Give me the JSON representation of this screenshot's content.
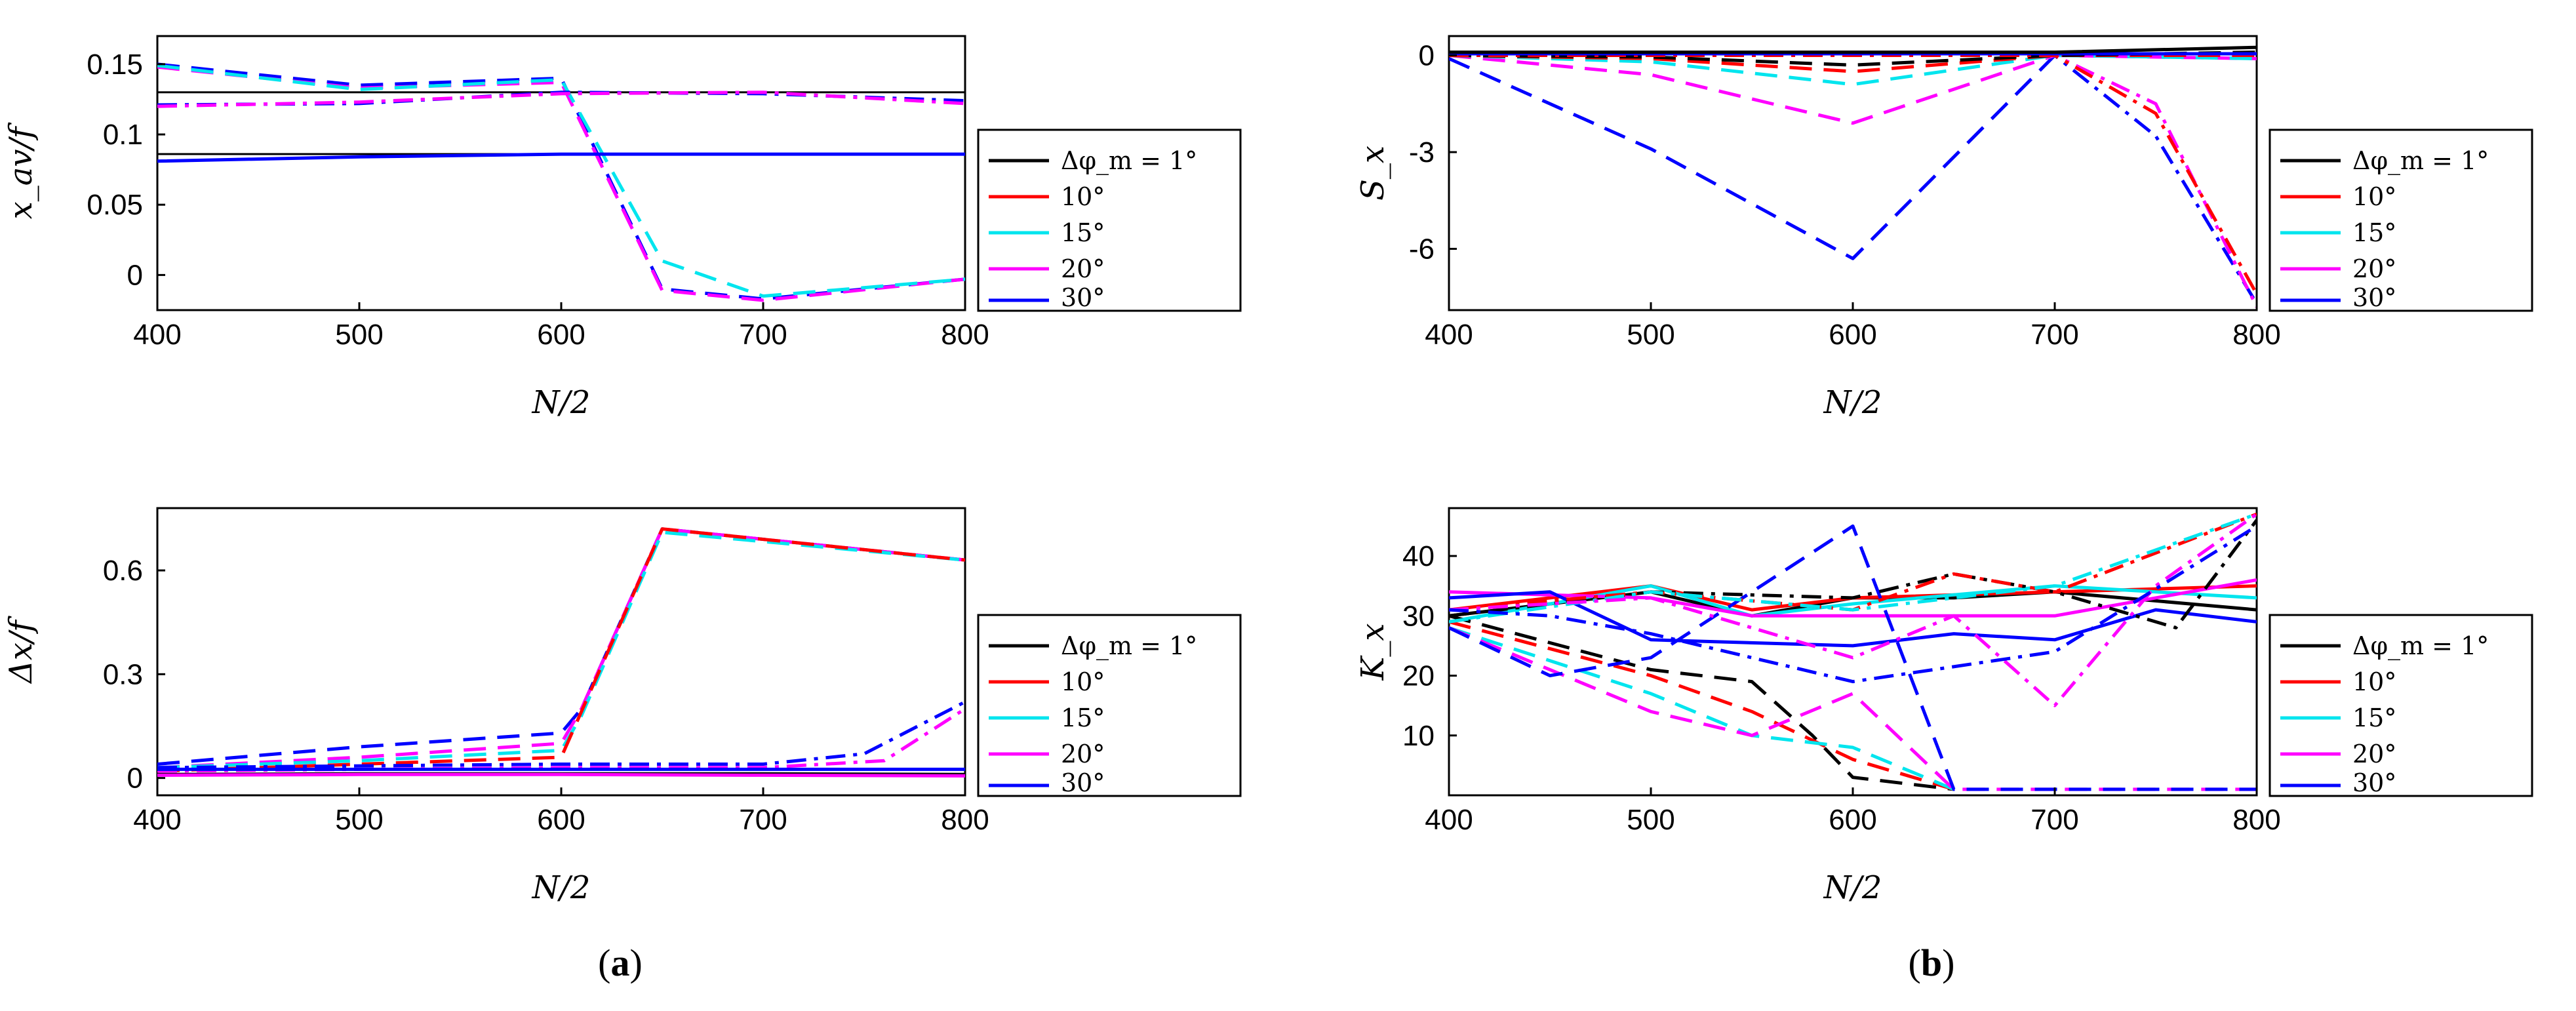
{
  "figure": {
    "panel_labels": [
      {
        "open": "(",
        "letter": "a",
        "close": ")"
      },
      {
        "open": "(",
        "letter": "b",
        "close": ")"
      }
    ]
  },
  "legend": {
    "entries": [
      "Δφ_m = 1°",
      "10°",
      "15°",
      "20°",
      "30°"
    ],
    "colors": [
      "#000000",
      "#ff0000",
      "#00e5ee",
      "#ff00ff",
      "#0000ff"
    ]
  },
  "chart_data": [
    {
      "id": "xav",
      "type": "line",
      "xlabel": "N/2",
      "ylabel": "x_av/f",
      "xlim": [
        400,
        800
      ],
      "ylim": [
        -0.025,
        0.17
      ],
      "xticks": [
        400,
        500,
        600,
        700,
        800
      ],
      "yticks": [
        0,
        0.05,
        0.1,
        0.15
      ],
      "ytick_labels": [
        "0",
        "0.05",
        "0.1",
        "0.15"
      ],
      "hlines": [
        0.17,
        0.13,
        0.086
      ],
      "series": [
        {
          "name": "30° dashed",
          "color": "#0000ff",
          "dash": "dash",
          "x": [
            400,
            500,
            600,
            650,
            700,
            800
          ],
          "y": [
            0.15,
            0.135,
            0.14,
            -0.01,
            -0.017,
            -0.003
          ]
        },
        {
          "name": "20° dashed",
          "color": "#ff00ff",
          "dash": "dash",
          "x": [
            400,
            500,
            600,
            650,
            700,
            800
          ],
          "y": [
            0.148,
            0.133,
            0.137,
            -0.011,
            -0.018,
            -0.003
          ]
        },
        {
          "name": "15° dashed",
          "color": "#00e5ee",
          "dash": "dash",
          "x": [
            400,
            500,
            600,
            650,
            700,
            800
          ],
          "y": [
            0.149,
            0.132,
            0.139,
            0.01,
            -0.015,
            -0.003
          ]
        },
        {
          "name": "dash-dot group",
          "color": "#0000ff",
          "dash": "dashdot",
          "x": [
            400,
            500,
            600,
            700,
            800
          ],
          "y": [
            0.121,
            0.122,
            0.13,
            0.129,
            0.124
          ]
        },
        {
          "name": "dash-dot group (20°)",
          "color": "#ff00ff",
          "dash": "dashdot",
          "x": [
            400,
            500,
            600,
            700,
            800
          ],
          "y": [
            0.12,
            0.123,
            0.129,
            0.13,
            0.122
          ]
        },
        {
          "name": "solid group",
          "color": "#0000ff",
          "dash": "solid",
          "x": [
            400,
            500,
            600,
            700,
            800
          ],
          "y": [
            0.081,
            0.084,
            0.086,
            0.086,
            0.086
          ]
        }
      ]
    },
    {
      "id": "dx",
      "type": "line",
      "xlabel": "N/2",
      "ylabel": "Δx/f",
      "xlim": [
        400,
        800
      ],
      "ylim": [
        -0.05,
        0.78
      ],
      "xticks": [
        400,
        500,
        600,
        700,
        800
      ],
      "yticks": [
        0,
        0.3,
        0.6
      ],
      "ytick_labels": [
        "0",
        "0.3",
        "0.6"
      ],
      "series": [
        {
          "name": "30° dashed",
          "color": "#0000ff",
          "dash": "dash",
          "x": [
            400,
            500,
            600,
            610,
            650,
            800
          ],
          "y": [
            0.04,
            0.09,
            0.13,
            0.2,
            0.72,
            0.63
          ]
        },
        {
          "name": "20° dashed",
          "color": "#ff00ff",
          "dash": "dash",
          "x": [
            400,
            500,
            600,
            610,
            650,
            800
          ],
          "y": [
            0.03,
            0.06,
            0.1,
            0.2,
            0.72,
            0.63
          ]
        },
        {
          "name": "15° dashed",
          "color": "#00e5ee",
          "dash": "dash",
          "x": [
            400,
            500,
            600,
            610,
            650,
            800
          ],
          "y": [
            0.03,
            0.05,
            0.08,
            0.18,
            0.71,
            0.63
          ]
        },
        {
          "name": "10° dashed",
          "color": "#ff0000",
          "dash": "dash",
          "x": [
            400,
            500,
            600,
            650,
            800
          ],
          "y": [
            0.02,
            0.04,
            0.06,
            0.72,
            0.63
          ]
        },
        {
          "name": "30° dash-dot",
          "color": "#0000ff",
          "dash": "dashdot",
          "x": [
            400,
            600,
            700,
            750,
            800
          ],
          "y": [
            0.03,
            0.04,
            0.04,
            0.07,
            0.22
          ]
        },
        {
          "name": "20° dash-dot",
          "color": "#ff00ff",
          "dash": "dashdot",
          "x": [
            400,
            600,
            700,
            760,
            800
          ],
          "y": [
            0.02,
            0.03,
            0.03,
            0.05,
            0.2
          ]
        },
        {
          "name": "solid group",
          "color": "#0000ff",
          "dash": "solid",
          "x": [
            400,
            500,
            600,
            700,
            800
          ],
          "y": [
            0.025,
            0.025,
            0.025,
            0.025,
            0.025
          ]
        },
        {
          "name": "solid 1°",
          "color": "#000000",
          "dash": "solid",
          "x": [
            400,
            500,
            600,
            700,
            800
          ],
          "y": [
            0.01,
            0.012,
            0.012,
            0.012,
            0.01
          ]
        },
        {
          "name": "solid 20°",
          "color": "#ff00ff",
          "dash": "solid",
          "x": [
            400,
            500,
            600,
            700,
            800
          ],
          "y": [
            0.008,
            0.01,
            0.01,
            0.008,
            0.006
          ]
        }
      ]
    },
    {
      "id": "sx",
      "type": "line",
      "xlabel": "N/2",
      "ylabel": "S_x",
      "xlim": [
        400,
        800
      ],
      "ylim": [
        -7.9,
        0.6
      ],
      "xticks": [
        400,
        500,
        600,
        700,
        800
      ],
      "yticks": [
        0,
        -3,
        -6
      ],
      "ytick_labels": [
        "0",
        "-3",
        "-6"
      ],
      "series": [
        {
          "name": "30° dashed",
          "color": "#0000ff",
          "dash": "dash",
          "x": [
            400,
            500,
            600,
            700
          ],
          "y": [
            -0.1,
            -2.9,
            -6.3,
            0.0
          ]
        },
        {
          "name": "20° dashed",
          "color": "#ff00ff",
          "dash": "dash",
          "x": [
            400,
            500,
            600,
            700,
            800
          ],
          "y": [
            0.0,
            -0.6,
            -2.1,
            0.0,
            -0.1
          ]
        },
        {
          "name": "15° dashed",
          "color": "#00e5ee",
          "dash": "dash",
          "x": [
            400,
            500,
            600,
            700,
            800
          ],
          "y": [
            0.0,
            -0.2,
            -0.9,
            0.0,
            -0.1
          ]
        },
        {
          "name": "10° dashed",
          "color": "#ff0000",
          "dash": "dash",
          "x": [
            400,
            500,
            600,
            700,
            800
          ],
          "y": [
            0.0,
            -0.1,
            -0.5,
            0.0,
            0.0
          ]
        },
        {
          "name": "1° dashed",
          "color": "#000000",
          "dash": "dash",
          "x": [
            400,
            500,
            600,
            700,
            800
          ],
          "y": [
            0.0,
            -0.05,
            -0.3,
            0.0,
            0.1
          ]
        },
        {
          "name": "30° dash-dot",
          "color": "#0000ff",
          "dash": "dashdot",
          "x": [
            400,
            700,
            750,
            800
          ],
          "y": [
            0.0,
            0.0,
            -2.5,
            -7.7
          ]
        },
        {
          "name": "20° dash-dot",
          "color": "#ff00ff",
          "dash": "dashdot",
          "x": [
            400,
            700,
            750,
            800
          ],
          "y": [
            0.0,
            0.0,
            -1.5,
            -7.8
          ]
        },
        {
          "name": "10° dash-dot",
          "color": "#ff0000",
          "dash": "dashdot",
          "x": [
            400,
            700,
            750,
            800
          ],
          "y": [
            0.0,
            0.0,
            -1.8,
            -7.4
          ]
        },
        {
          "name": "solid group",
          "color": "#0000ff",
          "dash": "solid",
          "x": [
            400,
            800
          ],
          "y": [
            0.05,
            0.05
          ]
        },
        {
          "name": "solid 1°",
          "color": "#000000",
          "dash": "solid",
          "x": [
            400,
            700,
            800
          ],
          "y": [
            0.1,
            0.1,
            0.25
          ]
        }
      ]
    },
    {
      "id": "kx",
      "type": "line",
      "xlabel": "N/2",
      "ylabel": "K_x",
      "xlim": [
        400,
        800
      ],
      "ylim": [
        0,
        48
      ],
      "xticks": [
        400,
        500,
        600,
        700,
        800
      ],
      "yticks": [
        10,
        20,
        30,
        40
      ],
      "ytick_labels": [
        "10",
        "20",
        "30",
        "40"
      ],
      "series": [
        {
          "name": "1° solid",
          "color": "#000000",
          "dash": "solid",
          "x": [
            400,
            500,
            550,
            600,
            650,
            700,
            800
          ],
          "y": [
            30,
            34,
            30,
            33,
            33,
            34,
            31
          ]
        },
        {
          "name": "10° solid",
          "color": "#ff0000",
          "dash": "solid",
          "x": [
            400,
            500,
            550,
            600,
            700,
            800
          ],
          "y": [
            31,
            35,
            31,
            33,
            34,
            35
          ]
        },
        {
          "name": "15° solid",
          "color": "#00e5ee",
          "dash": "solid",
          "x": [
            400,
            500,
            550,
            600,
            700,
            800
          ],
          "y": [
            29,
            35,
            30,
            32,
            35,
            33
          ]
        },
        {
          "name": "20° solid",
          "color": "#ff00ff",
          "dash": "solid",
          "x": [
            400,
            500,
            550,
            600,
            700,
            800
          ],
          "y": [
            34,
            33,
            30,
            30,
            30,
            36
          ]
        },
        {
          "name": "30° solid",
          "color": "#0000ff",
          "dash": "solid",
          "x": [
            400,
            450,
            500,
            600,
            650,
            700,
            750,
            800
          ],
          "y": [
            33,
            34,
            26,
            25,
            27,
            26,
            31,
            29
          ]
        },
        {
          "name": "1° dashed",
          "color": "#000000",
          "dash": "dash",
          "x": [
            400,
            500,
            550,
            580,
            600,
            650
          ],
          "y": [
            30,
            21,
            19,
            10,
            3,
            1
          ]
        },
        {
          "name": "10° dashed",
          "color": "#ff0000",
          "dash": "dash",
          "x": [
            400,
            500,
            550,
            600,
            650
          ],
          "y": [
            29,
            20,
            14,
            6,
            1
          ]
        },
        {
          "name": "15° dashed",
          "color": "#00e5ee",
          "dash": "dash",
          "x": [
            400,
            500,
            550,
            600,
            650
          ],
          "y": [
            28,
            17,
            10,
            8,
            1
          ]
        },
        {
          "name": "20° dashed",
          "color": "#ff00ff",
          "dash": "dash",
          "x": [
            400,
            500,
            550,
            600,
            650,
            800
          ],
          "y": [
            28,
            14,
            10,
            17,
            1,
            1
          ]
        },
        {
          "name": "30° dashed",
          "color": "#0000ff",
          "dash": "dash",
          "x": [
            400,
            450,
            500,
            600,
            650,
            800
          ],
          "y": [
            28,
            20,
            23,
            45,
            1,
            1
          ]
        },
        {
          "name": "1° dash-dot",
          "color": "#000000",
          "dash": "dashdot",
          "x": [
            400,
            500,
            600,
            650,
            700,
            760,
            800
          ],
          "y": [
            30,
            34,
            33,
            37,
            34,
            28,
            46
          ]
        },
        {
          "name": "10° dash-dot",
          "color": "#ff0000",
          "dash": "dashdot",
          "x": [
            400,
            500,
            600,
            650,
            700,
            800
          ],
          "y": [
            31,
            34,
            31,
            37,
            34,
            47
          ]
        },
        {
          "name": "15° dash-dot",
          "color": "#00e5ee",
          "dash": "dashdot",
          "x": [
            400,
            500,
            600,
            700,
            800
          ],
          "y": [
            29,
            34,
            31,
            35,
            47
          ]
        },
        {
          "name": "20° dash-dot",
          "color": "#ff00ff",
          "dash": "dashdot",
          "x": [
            400,
            500,
            600,
            650,
            700,
            750,
            800
          ],
          "y": [
            31,
            33,
            23,
            30,
            15,
            35,
            47
          ]
        },
        {
          "name": "30° dash-dot",
          "color": "#0000ff",
          "dash": "dashdot",
          "x": [
            400,
            450,
            500,
            600,
            700,
            800
          ],
          "y": [
            31,
            30,
            27,
            19,
            24,
            45
          ]
        }
      ]
    }
  ]
}
